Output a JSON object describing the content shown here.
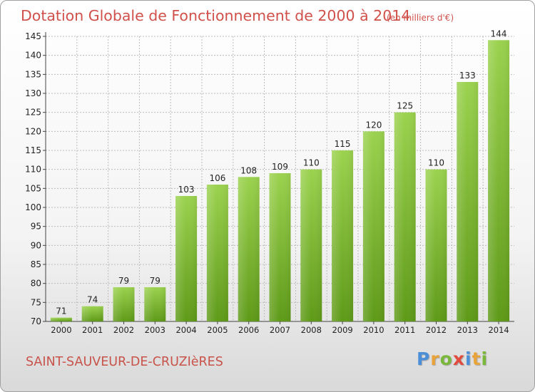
{
  "header": {
    "title": "Dotation Globale de Fonctionnement de 2000 à 2014",
    "unit": "(en milliers d'€)"
  },
  "footer": {
    "commune": "SAINT-SAUVEUR-DE-CRUZIèRES",
    "logo_letters": [
      {
        "ch": "P",
        "color": "#4a8fd8"
      },
      {
        "ch": "r",
        "color": "#e8a33a"
      },
      {
        "ch": "o",
        "color": "#79b83a"
      },
      {
        "ch": "x",
        "color": "#e14a3c"
      },
      {
        "ch": "i",
        "color": "#4a8fd8"
      },
      {
        "ch": "t",
        "color": "#e8a33a"
      },
      {
        "ch": "i",
        "color": "#79b83a"
      }
    ]
  },
  "colors": {
    "bar_top": "#9bd24e",
    "bar_bottom": "#5e9a18",
    "grid": "#bcbcbc",
    "axis_text": "#222222",
    "title": "#d0504a"
  },
  "chart_data": {
    "type": "bar",
    "categories": [
      "2000",
      "2001",
      "2002",
      "2003",
      "2004",
      "2005",
      "2006",
      "2007",
      "2008",
      "2009",
      "2010",
      "2011",
      "2012",
      "2013",
      "2014"
    ],
    "values": [
      71,
      74,
      79,
      79,
      103,
      106,
      108,
      109,
      110,
      115,
      120,
      125,
      110,
      133,
      144
    ],
    "title": "Dotation Globale de Fonctionnement de 2000 à 2014",
    "xlabel": "",
    "ylabel": "",
    "ylim": [
      70,
      145
    ],
    "yticks": [
      70,
      75,
      80,
      85,
      90,
      95,
      100,
      105,
      110,
      115,
      120,
      125,
      130,
      135,
      140,
      145
    ],
    "grid": true,
    "legend": "none",
    "data_labels": true
  }
}
